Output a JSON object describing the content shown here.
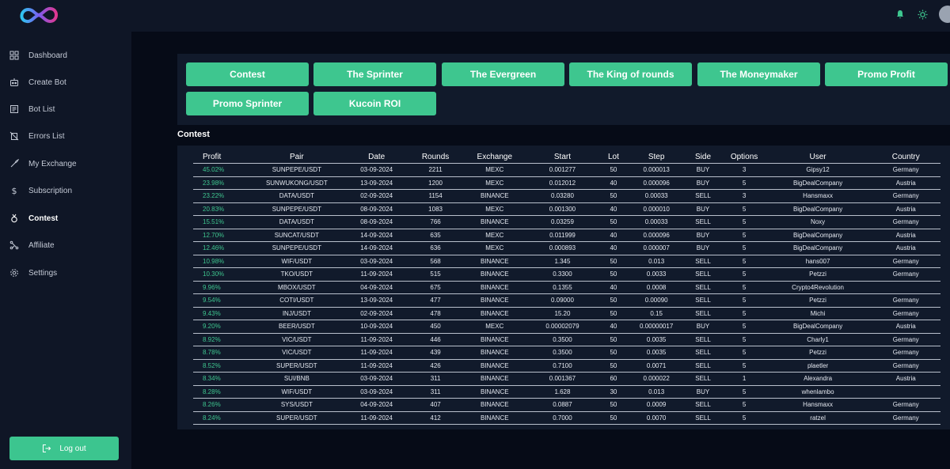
{
  "header": {
    "logo_icon": "infinity-logo-icon",
    "notification_icon": "bell-icon",
    "theme_icon": "sun-icon",
    "accent_color": "#3ec68f"
  },
  "sidebar": {
    "items": [
      {
        "label": "Dashboard",
        "icon": "grid-icon"
      },
      {
        "label": "Create Bot",
        "icon": "robot-icon"
      },
      {
        "label": "Bot List",
        "icon": "list-icon"
      },
      {
        "label": "Errors List",
        "icon": "errors-icon"
      },
      {
        "label": "My Exchange",
        "icon": "rocket-icon"
      },
      {
        "label": "Subscription",
        "icon": "dollar-icon"
      },
      {
        "label": "Contest",
        "icon": "medal-icon"
      },
      {
        "label": "Affiliate",
        "icon": "affiliate-icon"
      },
      {
        "label": "Settings",
        "icon": "gear-icon"
      }
    ],
    "active": "Contest",
    "logout_label": "Log out"
  },
  "tabs": [
    "Contest",
    "The Sprinter",
    "The Evergreen",
    "The King of rounds",
    "The Moneymaker",
    "Promo Profit",
    "Promo Sprinter",
    "Kucoin ROI"
  ],
  "section_title": "Contest",
  "table": {
    "columns": [
      "Profit",
      "Pair",
      "Date",
      "Rounds",
      "Exchange",
      "Start",
      "Lot",
      "Step",
      "Side",
      "Options",
      "User",
      "Country"
    ],
    "rows": [
      [
        "45.02%",
        "SUNPEPE/USDT",
        "03-09-2024",
        "2211",
        "MEXC",
        "0.001277",
        "50",
        "0.000013",
        "BUY",
        "3",
        "Gipsy12",
        "Germany"
      ],
      [
        "23.98%",
        "SUNWUKONG/USDT",
        "13-09-2024",
        "1200",
        "MEXC",
        "0.012012",
        "40",
        "0.000096",
        "BUY",
        "5",
        "BigDealCompany",
        "Austria"
      ],
      [
        "23.22%",
        "DATA/USDT",
        "02-09-2024",
        "1154",
        "BINANCE",
        "0.03280",
        "50",
        "0.00033",
        "SELL",
        "3",
        "Hansmaxx",
        "Germany"
      ],
      [
        "20.83%",
        "SUNPEPE/USDT",
        "08-09-2024",
        "1083",
        "MEXC",
        "0.001300",
        "40",
        "0.000010",
        "BUY",
        "5",
        "BigDealCompany",
        "Austria"
      ],
      [
        "15.51%",
        "DATA/USDT",
        "08-09-2024",
        "766",
        "BINANCE",
        "0.03259",
        "50",
        "0.00033",
        "SELL",
        "5",
        "Noxy",
        "Germany"
      ],
      [
        "12.70%",
        "SUNCAT/USDT",
        "14-09-2024",
        "635",
        "MEXC",
        "0.011999",
        "40",
        "0.000096",
        "BUY",
        "5",
        "BigDealCompany",
        "Austria"
      ],
      [
        "12.46%",
        "SUNPEPE/USDT",
        "14-09-2024",
        "636",
        "MEXC",
        "0.000893",
        "40",
        "0.000007",
        "BUY",
        "5",
        "BigDealCompany",
        "Austria"
      ],
      [
        "10.98%",
        "WIF/USDT",
        "03-09-2024",
        "568",
        "BINANCE",
        "1.345",
        "50",
        "0.013",
        "SELL",
        "5",
        "hans007",
        "Germany"
      ],
      [
        "10.30%",
        "TKO/USDT",
        "11-09-2024",
        "515",
        "BINANCE",
        "0.3300",
        "50",
        "0.0033",
        "SELL",
        "5",
        "Petzzi",
        "Germany"
      ],
      [
        "9.96%",
        "MBOX/USDT",
        "04-09-2024",
        "675",
        "BINANCE",
        "0.1355",
        "40",
        "0.0008",
        "SELL",
        "5",
        "Crypto4Revolution",
        ""
      ],
      [
        "9.54%",
        "COTI/USDT",
        "13-09-2024",
        "477",
        "BINANCE",
        "0.09000",
        "50",
        "0.00090",
        "SELL",
        "5",
        "Petzzi",
        "Germany"
      ],
      [
        "9.43%",
        "INJ/USDT",
        "02-09-2024",
        "478",
        "BINANCE",
        "15.20",
        "50",
        "0.15",
        "SELL",
        "5",
        "Michi",
        "Germany"
      ],
      [
        "9.20%",
        "BEER/USDT",
        "10-09-2024",
        "450",
        "MEXC",
        "0.00002079",
        "40",
        "0.00000017",
        "BUY",
        "5",
        "BigDealCompany",
        "Austria"
      ],
      [
        "8.92%",
        "VIC/USDT",
        "11-09-2024",
        "446",
        "BINANCE",
        "0.3500",
        "50",
        "0.0035",
        "SELL",
        "5",
        "Charly1",
        "Germany"
      ],
      [
        "8.78%",
        "VIC/USDT",
        "11-09-2024",
        "439",
        "BINANCE",
        "0.3500",
        "50",
        "0.0035",
        "SELL",
        "5",
        "Petzzi",
        "Germany"
      ],
      [
        "8.52%",
        "SUPER/USDT",
        "11-09-2024",
        "426",
        "BINANCE",
        "0.7100",
        "50",
        "0.0071",
        "SELL",
        "5",
        "plaetler",
        "Germany"
      ],
      [
        "8.34%",
        "SUI/BNB",
        "03-09-2024",
        "311",
        "BINANCE",
        "0.001367",
        "60",
        "0.000022",
        "SELL",
        "1",
        "Alexandra",
        "Austria"
      ],
      [
        "8.28%",
        "WIF/USDT",
        "03-09-2024",
        "311",
        "BINANCE",
        "1.628",
        "30",
        "0.013",
        "BUY",
        "5",
        "whenlambo",
        ""
      ],
      [
        "8.26%",
        "SYS/USDT",
        "04-09-2024",
        "407",
        "BINANCE",
        "0.0887",
        "50",
        "0.0009",
        "SELL",
        "5",
        "Hansmaxx",
        "Germany"
      ],
      [
        "8.24%",
        "SUPER/USDT",
        "11-09-2024",
        "412",
        "BINANCE",
        "0.7000",
        "50",
        "0.0070",
        "SELL",
        "5",
        "ratzel",
        "Germany"
      ]
    ]
  }
}
